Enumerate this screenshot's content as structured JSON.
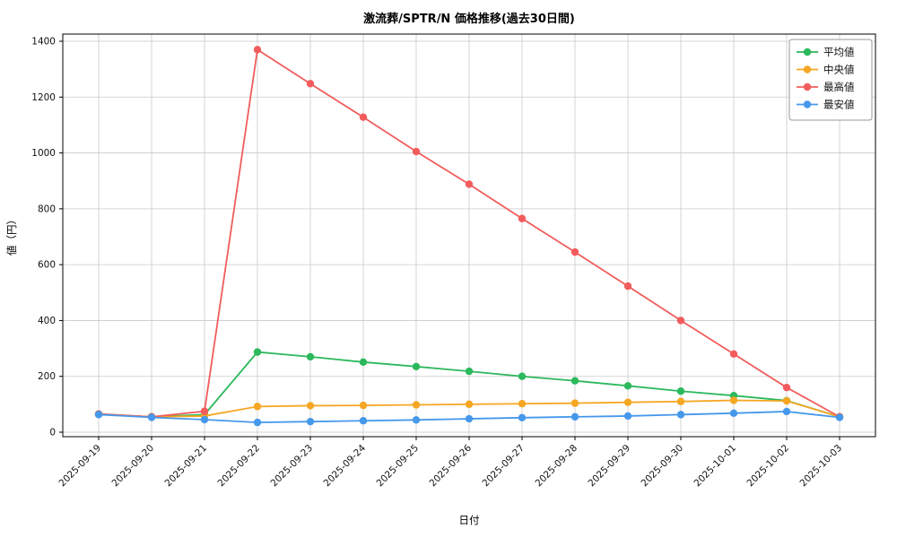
{
  "chart_data": {
    "type": "line",
    "title": "激流葬/SPTR/N 価格推移(過去30日間)",
    "xlabel": "日付",
    "ylabel": "値（円）",
    "ylim": [
      0,
      1400
    ],
    "yticks": [
      0,
      200,
      400,
      600,
      800,
      1000,
      1200,
      1400
    ],
    "grid": true,
    "legend_position": "upper right",
    "x": [
      "2025-09-19",
      "2025-09-20",
      "2025-09-21",
      "2025-09-22",
      "2025-09-23",
      "2025-09-24",
      "2025-09-25",
      "2025-09-26",
      "2025-09-27",
      "2025-09-28",
      "2025-09-29",
      "2025-09-30",
      "2025-10-01",
      "2025-10-02",
      "2025-10-03"
    ],
    "series": [
      {
        "name": "平均値",
        "color": "#2cb85c",
        "values": [
          65,
          55,
          63,
          287,
          270,
          251,
          235,
          218,
          200,
          184,
          166,
          147,
          131,
          113,
          55
        ]
      },
      {
        "name": "中央値",
        "color": "#f5a623",
        "values": [
          65,
          55,
          58,
          92,
          95,
          96,
          98,
          100,
          102,
          104,
          107,
          110,
          114,
          112,
          55
        ]
      },
      {
        "name": "最高値",
        "color": "#f25c5c",
        "values": [
          65,
          55,
          75,
          1370,
          1248,
          1128,
          1005,
          888,
          765,
          645,
          523,
          400,
          280,
          160,
          55
        ]
      },
      {
        "name": "最安値",
        "color": "#4698eb",
        "values": [
          63,
          53,
          45,
          35,
          38,
          41,
          44,
          48,
          52,
          55,
          58,
          63,
          68,
          74,
          53
        ]
      }
    ]
  }
}
